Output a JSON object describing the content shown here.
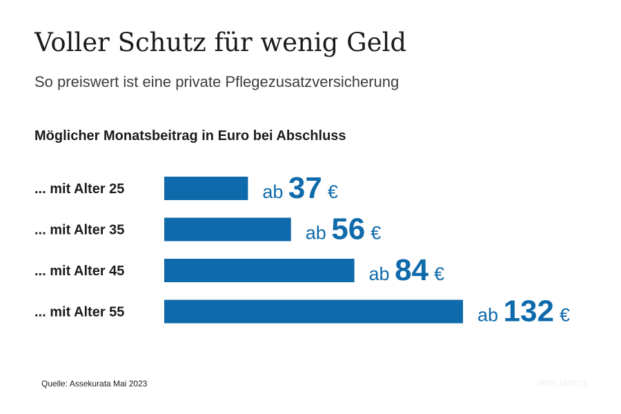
{
  "title": "Voller Schutz für wenig Geld",
  "subtitle": "So preiswert ist eine private Pflegezusatzversicherung",
  "chart_heading": "Möglicher Monatsbeitrag in Euro bei Abschluss",
  "source": "Quelle: Assekurata Mai 2023",
  "code": "0031-160523",
  "colors": {
    "bar": "#0f6aab",
    "value_text": "#0f6aab"
  },
  "chart_data": {
    "type": "bar",
    "orientation": "horizontal",
    "title": "Möglicher Monatsbeitrag in Euro bei Abschluss",
    "categories": [
      "... mit Alter 25",
      "... mit Alter 35",
      "... mit Alter 45",
      "... mit Alter 55"
    ],
    "values": [
      37,
      56,
      84,
      132
    ],
    "value_prefix": "ab",
    "value_unit": "€",
    "xlim": [
      0,
      132
    ],
    "grid": false,
    "legend": "none"
  }
}
